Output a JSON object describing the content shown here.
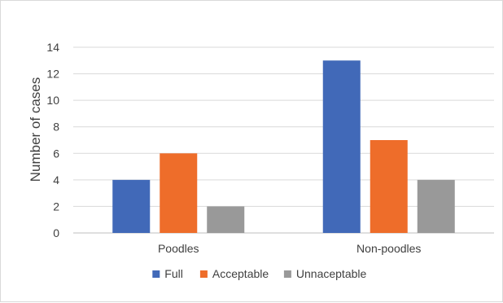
{
  "chart_data": {
    "type": "bar",
    "categories": [
      "Poodles",
      "Non-poodles"
    ],
    "series": [
      {
        "name": "Full",
        "values": [
          4,
          13
        ],
        "color": "#4169b8"
      },
      {
        "name": "Acceptable",
        "values": [
          6,
          7
        ],
        "color": "#ee6d2a"
      },
      {
        "name": "Unnaceptable",
        "values": [
          2,
          4
        ],
        "color": "#999999"
      }
    ],
    "title": "",
    "xlabel": "",
    "ylabel": "Number of cases",
    "ylim": [
      0,
      14
    ],
    "yticks": [
      0,
      2,
      4,
      6,
      8,
      10,
      12,
      14
    ],
    "grid": true,
    "legend_position": "bottom"
  }
}
